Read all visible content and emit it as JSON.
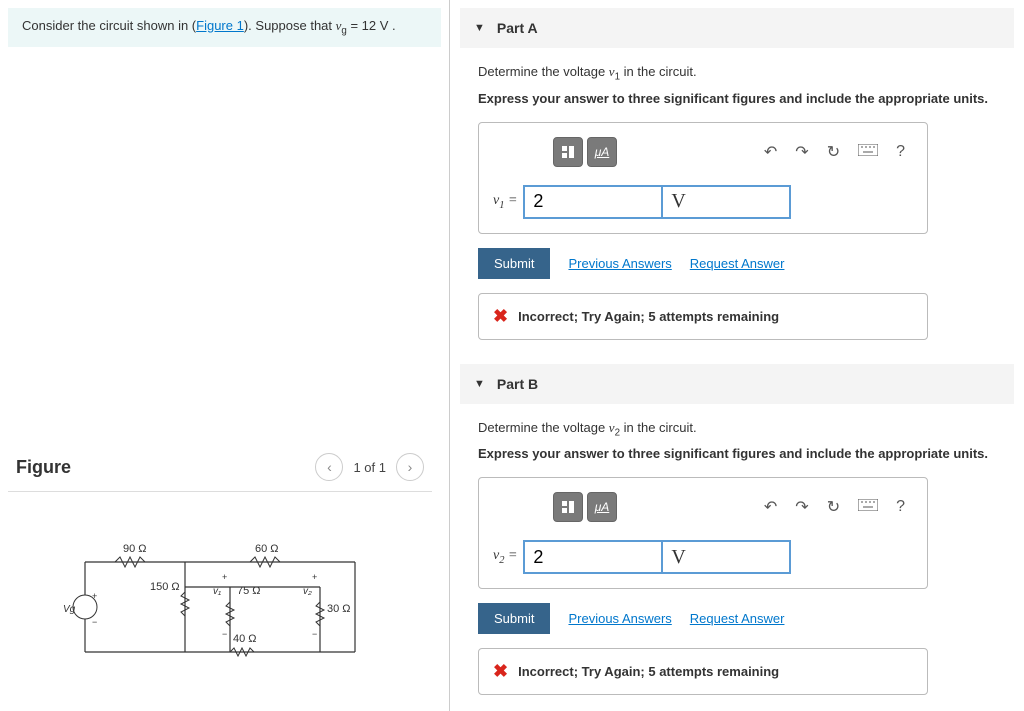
{
  "prompt": {
    "text_before": "Consider the circuit shown in (",
    "link": "Figure 1",
    "text_after": "). Suppose that ",
    "var": "v",
    "sub": "g",
    "equals": " = 12  V ."
  },
  "figure": {
    "title": "Figure",
    "page": "1 of 1",
    "labels": {
      "r90": "90 Ω",
      "r60": "60 Ω",
      "r150": "150 Ω",
      "r75": "75 Ω",
      "r30": "30 Ω",
      "r40": "40 Ω",
      "vg": "Vg",
      "v1": "v₁",
      "v2": "v₂"
    }
  },
  "parts": [
    {
      "id": "A",
      "header": "Part A",
      "question_pre": "Determine the voltage ",
      "var_html": "v",
      "var_sub": "1",
      "question_post": " in the circuit.",
      "instruction": "Express your answer to three significant figures and include the appropriate units.",
      "label_var": "v",
      "label_sub": "1",
      "value": "2",
      "unit": "V",
      "submit": "Submit",
      "prev_link": "Previous Answers",
      "req_link": "Request Answer",
      "feedback": "Incorrect; Try Again; 5 attempts remaining"
    },
    {
      "id": "B",
      "header": "Part B",
      "question_pre": "Determine the voltage ",
      "var_html": "v",
      "var_sub": "2",
      "question_post": " in the circuit.",
      "instruction": "Express your answer to three significant figures and include the appropriate units.",
      "label_var": "v",
      "label_sub": "2",
      "value": "2",
      "unit": "V",
      "submit": "Submit",
      "prev_link": "Previous Answers",
      "req_link": "Request Answer",
      "feedback": "Incorrect; Try Again; 5 attempts remaining"
    }
  ],
  "toolbar": {
    "mu_a": "μA",
    "help": "?"
  }
}
